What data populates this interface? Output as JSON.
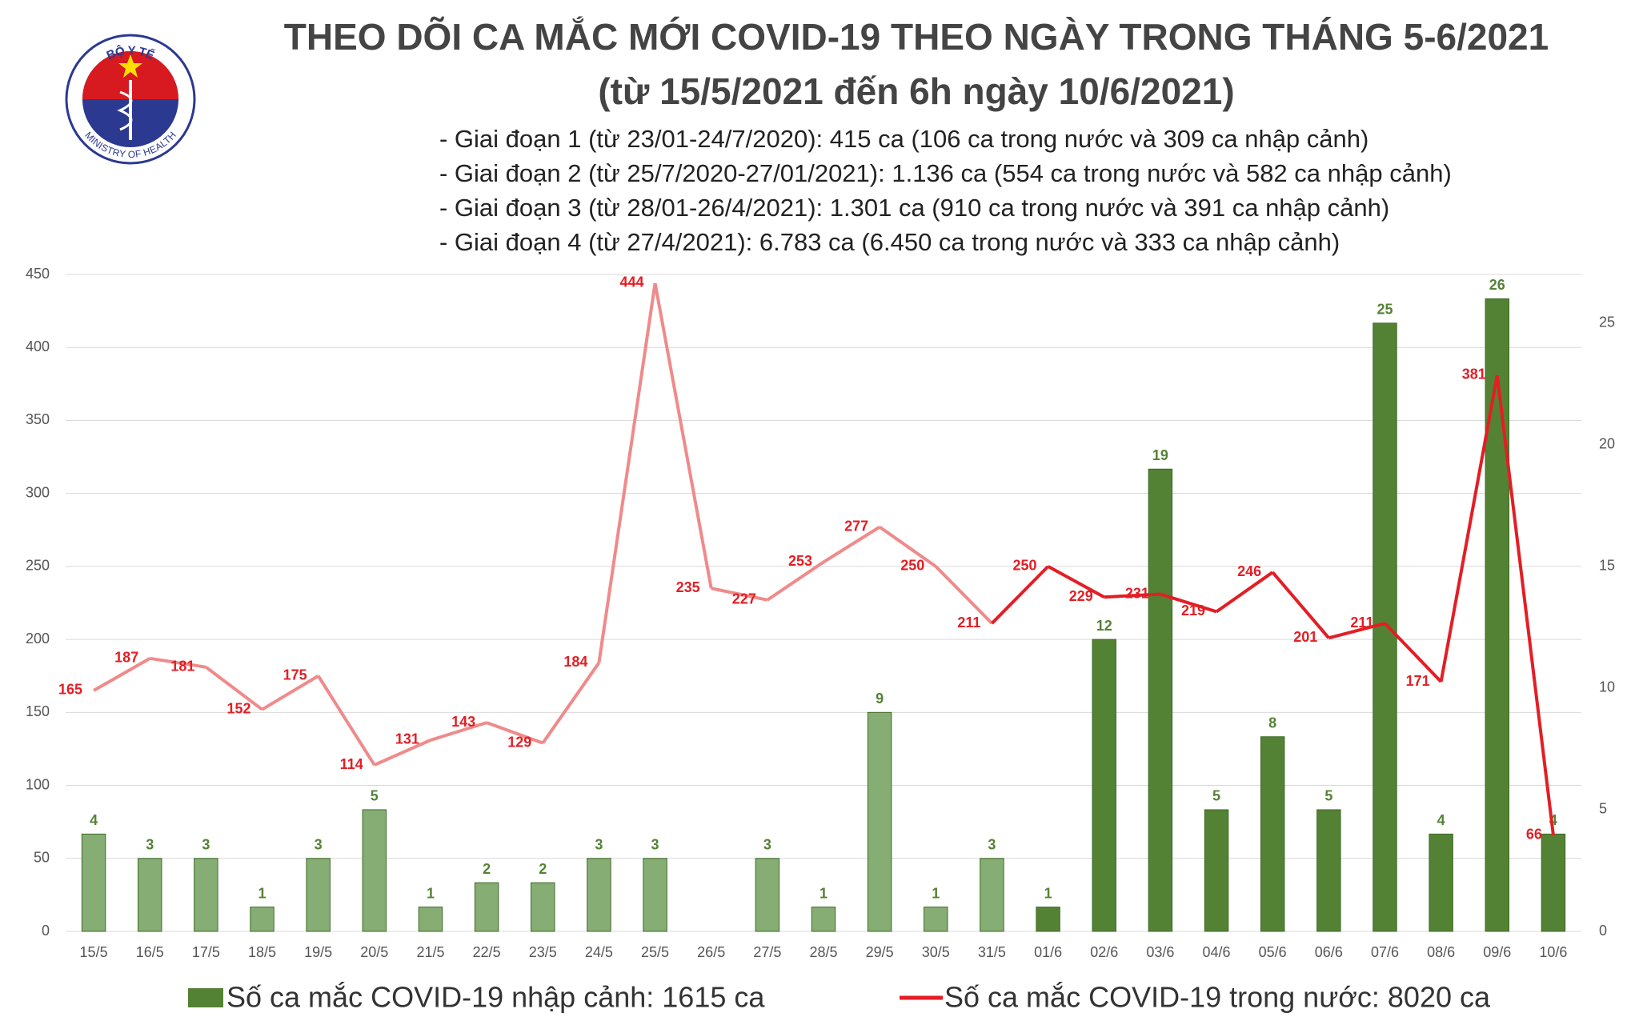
{
  "logo": {
    "top_text": "BỘ Y TẾ",
    "bottom_text": "MINISTRY OF HEALTH"
  },
  "chart_data": {
    "type": "bar-line",
    "title": "THEO DÕI CA MẮC MỚI COVID-19 THEO NGÀY TRONG THÁNG 5-6/2021",
    "subtitle": "(từ 15/5/2021 đến 6h ngày 10/6/2021)",
    "notes": [
      "- Giai đoạn 1 (từ 23/01-24/7/2020): 415 ca (106 ca trong nước và 309 ca nhập cảnh)",
      "- Giai đoạn 2 (từ 25/7/2020-27/01/2021): 1.136 ca (554 ca trong nước và 582 ca nhập cảnh)",
      "- Giai đoạn 3 (từ 28/01-26/4/2021): 1.301 ca (910 ca trong nước và 391 ca nhập cảnh)",
      "- Giai đoạn 4 (từ 27/4/2021): 6.783 ca (6.450 ca trong nước và 333 ca nhập cảnh)"
    ],
    "categories": [
      "15/5",
      "16/5",
      "17/5",
      "18/5",
      "19/5",
      "20/5",
      "21/5",
      "22/5",
      "23/5",
      "24/5",
      "25/5",
      "26/5",
      "27/5",
      "28/5",
      "29/5",
      "30/5",
      "31/5",
      "01/6",
      "02/6",
      "03/6",
      "04/6",
      "05/6",
      "06/6",
      "07/6",
      "08/6",
      "09/6",
      "10/6"
    ],
    "series": [
      {
        "name": "Số ca mắc COVID-19 nhập cảnh: 1615 ca",
        "type": "bar",
        "axis": "y2",
        "color": "#548235",
        "colors": [
          "#86ad74",
          "#86ad74",
          "#86ad74",
          "#86ad74",
          "#86ad74",
          "#86ad74",
          "#86ad74",
          "#86ad74",
          "#86ad74",
          "#86ad74",
          "#86ad74",
          "#86ad74",
          "#86ad74",
          "#86ad74",
          "#86ad74",
          "#86ad74",
          "#86ad74",
          "#548235",
          "#548235",
          "#548235",
          "#548235",
          "#548235",
          "#548235",
          "#548235",
          "#548235",
          "#548235",
          "#548235"
        ],
        "values": [
          4,
          3,
          3,
          1,
          3,
          5,
          1,
          2,
          2,
          3,
          3,
          null,
          3,
          1,
          9,
          1,
          3,
          1,
          12,
          19,
          5,
          8,
          5,
          25,
          4,
          26,
          4
        ]
      },
      {
        "name": "Số ca mắc COVID-19 trong nước: 8020 ca",
        "type": "line",
        "axis": "y",
        "color": "#e31e24",
        "colors": [
          "#f08a8a",
          "#f08a8a",
          "#f08a8a",
          "#f08a8a",
          "#f08a8a",
          "#f08a8a",
          "#f08a8a",
          "#f08a8a",
          "#f08a8a",
          "#f08a8a",
          "#f08a8a",
          "#f08a8a",
          "#f08a8a",
          "#f08a8a",
          "#f08a8a",
          "#f08a8a",
          "#f08a8a",
          "#e31e24",
          "#e31e24",
          "#e31e24",
          "#e31e24",
          "#e31e24",
          "#e31e24",
          "#e31e24",
          "#e31e24",
          "#e31e24",
          "#e31e24"
        ],
        "values": [
          165,
          187,
          181,
          152,
          175,
          114,
          131,
          143,
          129,
          184,
          444,
          235,
          227,
          253,
          277,
          250,
          211,
          250,
          229,
          231,
          219,
          246,
          201,
          211,
          171,
          381,
          66
        ]
      }
    ],
    "ylim": [
      0,
      450
    ],
    "yticks": [
      0,
      50,
      100,
      150,
      200,
      250,
      300,
      350,
      400,
      450
    ],
    "y2lim": [
      0,
      27
    ],
    "y2ticks": [
      0,
      5,
      10,
      15,
      20,
      25
    ],
    "grid": true
  }
}
